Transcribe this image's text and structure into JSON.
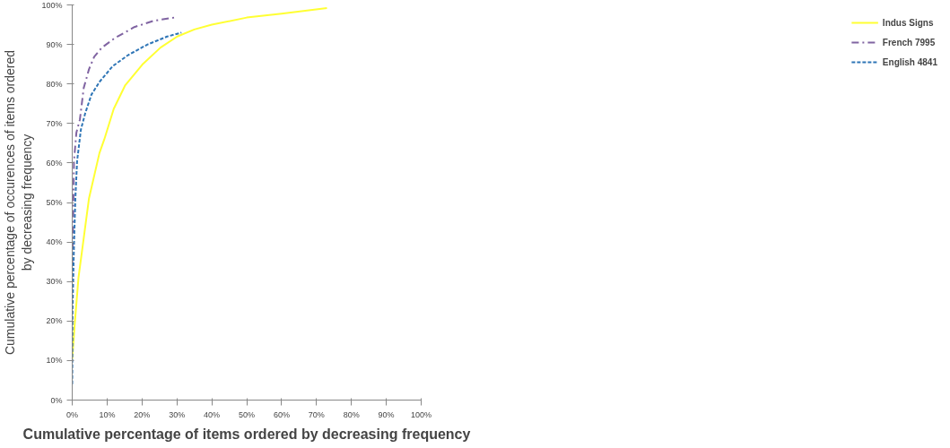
{
  "chart_data": {
    "type": "line",
    "xlabel": "Cumulative percentage of items ordered by decreasing frequency",
    "ylabel": "Cumulative percentage of occurences of items ordered\nby decreasing frequency",
    "xlim": [
      0,
      100
    ],
    "ylim": [
      0,
      100
    ],
    "xticks": [
      {
        "value": 0,
        "label": "0%"
      },
      {
        "value": 10,
        "label": "10%"
      },
      {
        "value": 20,
        "label": "20%"
      },
      {
        "value": 30,
        "label": "30%"
      },
      {
        "value": 40,
        "label": "40%"
      },
      {
        "value": 50,
        "label": "50%"
      },
      {
        "value": 60,
        "label": "60%"
      },
      {
        "value": 70,
        "label": "70%"
      },
      {
        "value": 80,
        "label": "80%"
      },
      {
        "value": 90,
        "label": "90%"
      },
      {
        "value": 100,
        "label": "100%"
      }
    ],
    "yticks": [
      {
        "value": 0,
        "label": "0%"
      },
      {
        "value": 10,
        "label": "10%"
      },
      {
        "value": 20,
        "label": "20%"
      },
      {
        "value": 30,
        "label": "30%"
      },
      {
        "value": 40,
        "label": "40%"
      },
      {
        "value": 50,
        "label": "50%"
      },
      {
        "value": 60,
        "label": "60%"
      },
      {
        "value": 70,
        "label": "70%"
      },
      {
        "value": 80,
        "label": "80%"
      },
      {
        "value": 90,
        "label": "90%"
      },
      {
        "value": 100,
        "label": "100%"
      }
    ],
    "grid": false,
    "legend": "right",
    "series": [
      {
        "name": "Indus Signs",
        "color": "#ffff33",
        "line_style": "solid",
        "x": [
          0,
          0.7,
          1.8,
          4.8,
          7.8,
          9.2,
          11.9,
          15.2,
          20.1,
          25.3,
          30.1,
          35,
          40,
          50,
          60,
          73
        ],
        "values": [
          10.4,
          19,
          31,
          51,
          62.5,
          66,
          73.7,
          79.7,
          84.9,
          89.2,
          92,
          93.8,
          95,
          96.8,
          97.8,
          99.2
        ]
      },
      {
        "name": "French 7995",
        "color": "#8064a2",
        "line_style": "dashdot",
        "x": [
          0,
          0.3,
          0.5,
          1.2,
          2.2,
          3.3,
          4.8,
          6.3,
          8.5,
          12.2,
          17.8,
          23.4,
          29.2
        ],
        "values": [
          34,
          47,
          60.5,
          67.7,
          71,
          79,
          83.7,
          86.9,
          89.2,
          91.6,
          94.4,
          96,
          96.8
        ]
      },
      {
        "name": "English 4841",
        "color": "#2e75b6",
        "line_style": "dashed",
        "x": [
          0,
          0.1,
          0.5,
          0.9,
          1.4,
          2.5,
          3.7,
          5.5,
          7.8,
          11.6,
          16,
          21.6,
          27.2,
          31.3
        ],
        "values": [
          4,
          23,
          39,
          51,
          60.5,
          68.5,
          72.5,
          77.3,
          80.5,
          84.5,
          87.3,
          90,
          92,
          93
        ]
      }
    ]
  }
}
